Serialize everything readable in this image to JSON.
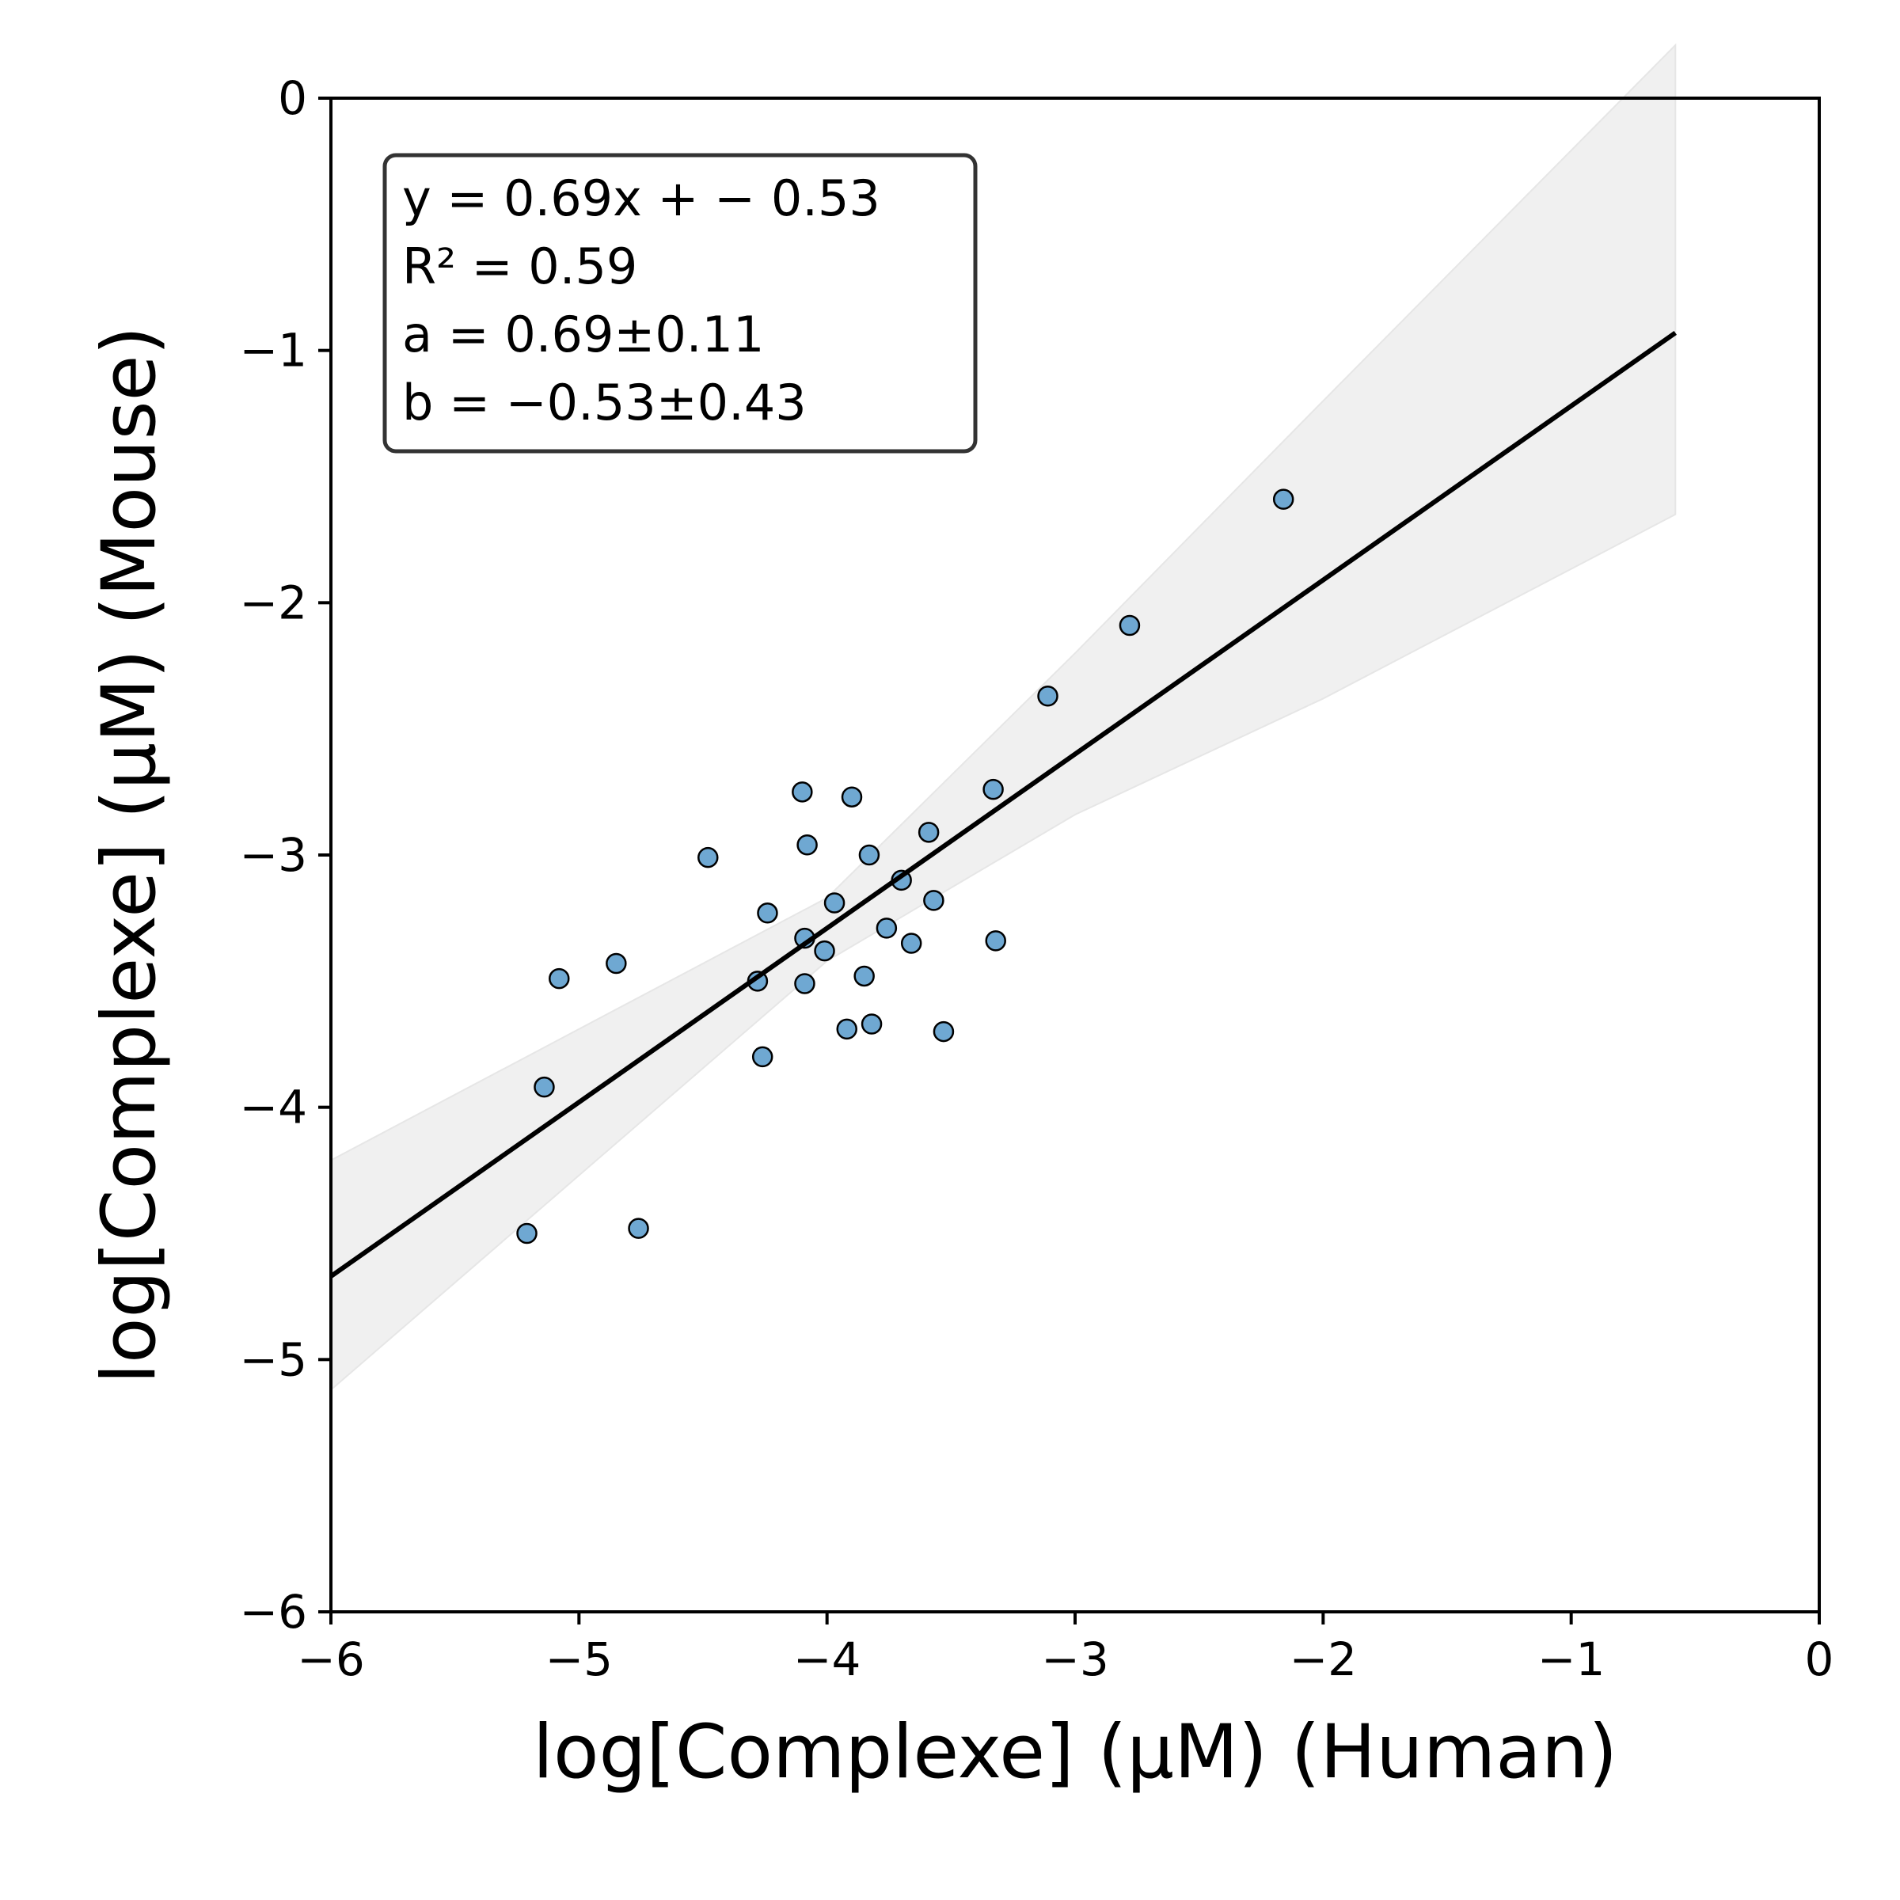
{
  "chart_data": {
    "type": "scatter",
    "xlabel": "log[Complexe] (μM) (Human)",
    "ylabel": "log[Complexe] (μM) (Mouse)",
    "xlim": [
      -6,
      0
    ],
    "ylim": [
      -6,
      0
    ],
    "xticks": [
      -6,
      -5,
      -4,
      -3,
      -2,
      -1,
      0
    ],
    "yticks": [
      -6,
      -5,
      -4,
      -3,
      -2,
      -1,
      0
    ],
    "xtick_labels": [
      "−6",
      "−5",
      "−4",
      "−3",
      "−2",
      "−1",
      "0"
    ],
    "ytick_labels": [
      "−6",
      "−5",
      "−4",
      "−3",
      "−2",
      "−1",
      "0"
    ],
    "grid": false,
    "point_color": "#6fa8d2",
    "line_color": "#000000",
    "band_color": "#f0f0f0",
    "points": [
      {
        "x": -2.16,
        "y": -1.59
      },
      {
        "x": -2.78,
        "y": -2.09
      },
      {
        "x": -3.11,
        "y": -2.37
      },
      {
        "x": -3.33,
        "y": -2.74
      },
      {
        "x": -3.59,
        "y": -2.91
      },
      {
        "x": -3.9,
        "y": -2.77
      },
      {
        "x": -4.1,
        "y": -2.75
      },
      {
        "x": -4.08,
        "y": -2.96
      },
      {
        "x": -3.83,
        "y": -3.0
      },
      {
        "x": -4.48,
        "y": -3.01
      },
      {
        "x": -3.7,
        "y": -3.1
      },
      {
        "x": -3.57,
        "y": -3.18
      },
      {
        "x": -3.97,
        "y": -3.19
      },
      {
        "x": -4.24,
        "y": -3.23
      },
      {
        "x": -3.76,
        "y": -3.29
      },
      {
        "x": -4.09,
        "y": -3.33
      },
      {
        "x": -3.32,
        "y": -3.34
      },
      {
        "x": -3.66,
        "y": -3.35
      },
      {
        "x": -4.01,
        "y": -3.38
      },
      {
        "x": -4.85,
        "y": -3.43
      },
      {
        "x": -3.85,
        "y": -3.48
      },
      {
        "x": -5.08,
        "y": -3.49
      },
      {
        "x": -4.28,
        "y": -3.5
      },
      {
        "x": -4.09,
        "y": -3.51
      },
      {
        "x": -3.82,
        "y": -3.67
      },
      {
        "x": -3.92,
        "y": -3.69
      },
      {
        "x": -3.53,
        "y": -3.7
      },
      {
        "x": -4.26,
        "y": -3.8
      },
      {
        "x": -5.14,
        "y": -3.92
      },
      {
        "x": -4.76,
        "y": -4.48
      },
      {
        "x": -5.21,
        "y": -4.5
      }
    ],
    "fit": {
      "slope": 0.69,
      "intercept": -0.53,
      "x_range": [
        -6.0,
        -0.58
      ]
    },
    "band_upper": [
      [
        -6.0,
        -4.21
      ],
      [
        -4.0,
        -3.17
      ],
      [
        -3.0,
        -2.2
      ],
      [
        -2.0,
        -1.2
      ],
      [
        -0.58,
        0.21
      ]
    ],
    "band_lower": [
      [
        -6.0,
        -5.12
      ],
      [
        -4.0,
        -3.42
      ],
      [
        -3.0,
        -2.84
      ],
      [
        -2.0,
        -2.38
      ],
      [
        -0.58,
        -1.65
      ]
    ],
    "annotation": {
      "lines": [
        "y = 0.69x + − 0.53",
        "R² = 0.59",
        "a = 0.69±0.11",
        "b = −0.53±0.43"
      ]
    }
  }
}
